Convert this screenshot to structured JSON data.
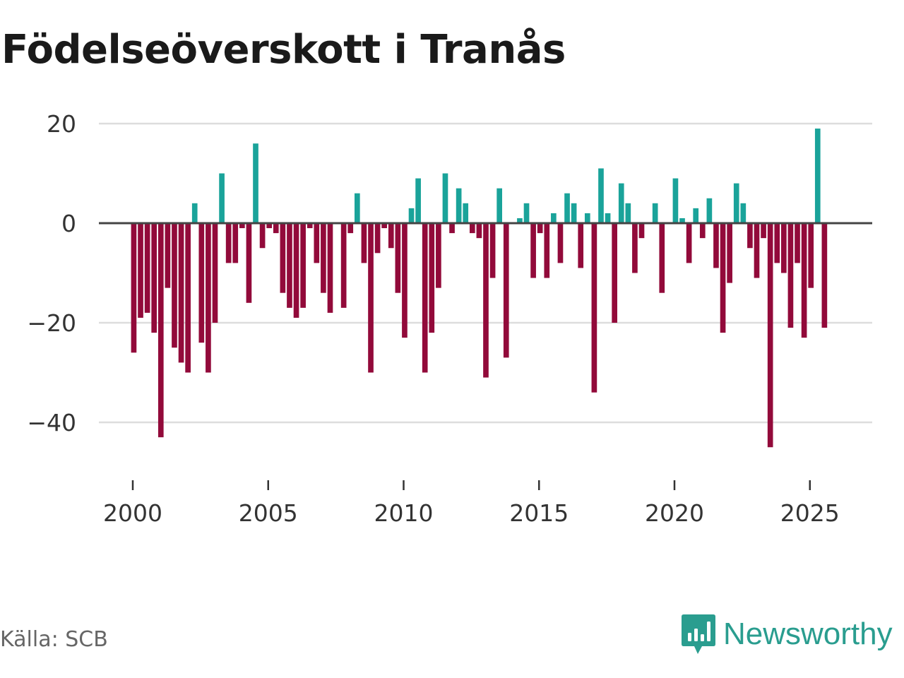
{
  "header": {
    "title": "Födelseöverskott i Tranås"
  },
  "footer": {
    "source": "Källa: SCB",
    "brand": "Newsworthy"
  },
  "colors": {
    "positive": "#1aa39a",
    "negative": "#920a3a",
    "grid": "#dddddd",
    "zero_line": "#444444"
  },
  "chart_data": {
    "type": "bar",
    "title": "Födelseöverskott i Tranås",
    "xlabel": "",
    "ylabel": "",
    "ylim": [
      -50,
      22
    ],
    "xlim": [
      1999.5,
      2027.3
    ],
    "grid": true,
    "y_ticks": [
      20,
      0,
      -20,
      -40
    ],
    "y_tick_labels": [
      "20",
      "0",
      "−20",
      "−40"
    ],
    "x_ticks": [
      2000,
      2005,
      2010,
      2015,
      2020,
      2025
    ],
    "x_tick_labels": [
      "2000",
      "2005",
      "2010",
      "2015",
      "2020",
      "2025"
    ],
    "frequency": "quarterly",
    "x_start": 2000.0,
    "x_step": 0.25,
    "values": [
      -26,
      -19,
      -18,
      -22,
      -43,
      -13,
      -25,
      -28,
      -30,
      4,
      -24,
      -30,
      -20,
      10,
      -8,
      -8,
      -1,
      -16,
      16,
      -5,
      -1,
      -2,
      -14,
      -17,
      -19,
      -17,
      -1,
      -8,
      -14,
      -18,
      0,
      -17,
      -2,
      6,
      -8,
      -30,
      -6,
      -1,
      -5,
      -14,
      -23,
      3,
      9,
      -30,
      -22,
      -13,
      10,
      -2,
      7,
      4,
      -2,
      -3,
      -31,
      -11,
      7,
      -27,
      0,
      1,
      4,
      -11,
      -2,
      -11,
      2,
      -8,
      6,
      4,
      -9,
      2,
      -34,
      11,
      2,
      -20,
      8,
      4,
      -10,
      -3,
      0,
      4,
      -14,
      0,
      9,
      1,
      -8,
      3,
      -3,
      5,
      -9,
      -22,
      -12,
      8,
      4,
      -5,
      -11,
      -3,
      -45,
      -8,
      -10,
      -21,
      -8,
      -23,
      -13,
      19,
      -21
    ]
  }
}
